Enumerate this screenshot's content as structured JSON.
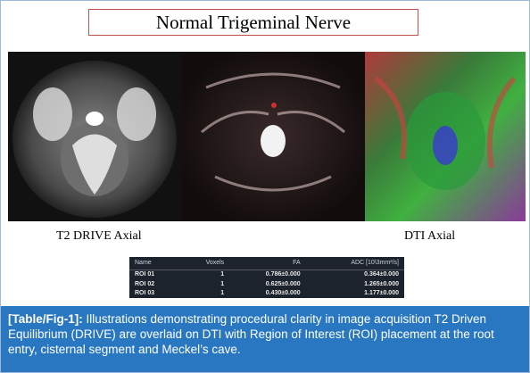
{
  "figure": {
    "title": "Normal Trigeminal Nerve",
    "image_labels": [
      "T2 DRIVE Axial",
      "DTI Axial"
    ],
    "table": {
      "header": [
        "Name",
        "Voxels",
        "FA",
        "ADC [10\\3mm²/s]"
      ],
      "rows": [
        [
          "ROI 01",
          "1",
          "0.786±0.000",
          "0.364±0.000"
        ],
        [
          "ROI 02",
          "1",
          "0.625±0.000",
          "1.265±0.000"
        ],
        [
          "ROI 03",
          "1",
          "0.430±0.000",
          "1.177±0.000"
        ]
      ]
    }
  },
  "caption": {
    "label": "[Table/Fig-1]:",
    "text": "Illustrations demonstrating procedural clarity in image acquisition T2 Driven Equilibrium (DRIVE) are overlaid on DTI with Region of Interest (ROI) placement at the root entry, cisternal segment and Meckel’s cave."
  }
}
